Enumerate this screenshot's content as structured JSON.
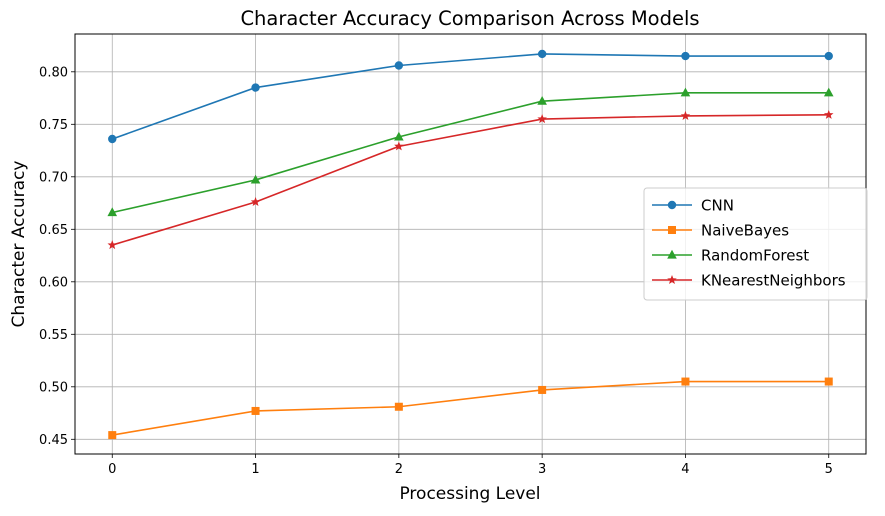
{
  "chart_data": {
    "type": "line",
    "title": "Character Accuracy Comparison Across Models",
    "xlabel": "Processing Level",
    "ylabel": "Character Accuracy",
    "x": [
      0,
      1,
      2,
      3,
      4,
      5
    ],
    "x_tick_labels": [
      "0",
      "1",
      "2",
      "3",
      "4",
      "5"
    ],
    "xlim": [
      -0.26,
      5.26
    ],
    "ylim": [
      0.436,
      0.836
    ],
    "y_ticks": [
      0.45,
      0.5,
      0.55,
      0.6,
      0.65,
      0.7,
      0.75,
      0.8
    ],
    "y_tick_labels": [
      "0.45",
      "0.50",
      "0.55",
      "0.60",
      "0.65",
      "0.70",
      "0.75",
      "0.80"
    ],
    "grid": true,
    "legend_position": "center-right",
    "series": [
      {
        "name": "CNN",
        "marker": "circle",
        "color": "#1f77b4",
        "values": [
          0.736,
          0.785,
          0.806,
          0.817,
          0.815,
          0.815
        ]
      },
      {
        "name": "NaiveBayes",
        "marker": "square",
        "color": "#ff7f0e",
        "values": [
          0.454,
          0.477,
          0.481,
          0.497,
          0.505,
          0.505
        ]
      },
      {
        "name": "RandomForest",
        "marker": "triangle",
        "color": "#2ca02c",
        "values": [
          0.666,
          0.697,
          0.738,
          0.772,
          0.78,
          0.78
        ]
      },
      {
        "name": "KNearestNeighbors",
        "marker": "star",
        "color": "#d62728",
        "values": [
          0.635,
          0.676,
          0.729,
          0.755,
          0.758,
          0.759
        ]
      }
    ]
  }
}
